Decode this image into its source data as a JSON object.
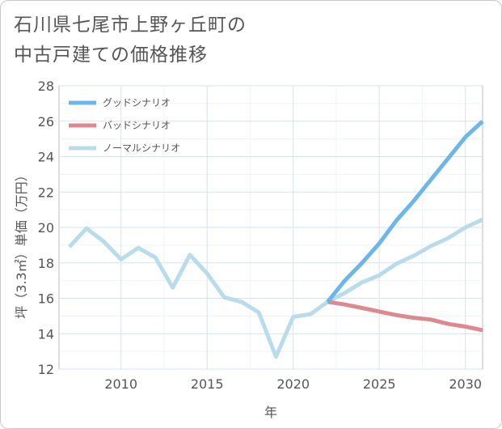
{
  "title_lines": [
    "石川県七尾市上野ヶ丘町の",
    "中古戸建ての価格推移"
  ],
  "chart_data": {
    "type": "line",
    "title": "石川県七尾市上野ヶ丘町の中古戸建ての価格推移",
    "xlabel": "年",
    "ylabel": "坪（3.3㎡）単価（万円）",
    "xlim": [
      2006.4,
      2031
    ],
    "ylim": [
      12,
      28
    ],
    "xticks": [
      2010,
      2015,
      2020,
      2025,
      2030
    ],
    "yticks": [
      12,
      14,
      16,
      18,
      20,
      22,
      24,
      26,
      28
    ],
    "grid": true,
    "legend_position": "top-left",
    "series": [
      {
        "name": "グッドシナリオ",
        "color": "#6cb6e8",
        "x": [
          2022,
          2023,
          2024,
          2025,
          2026,
          2027,
          2028,
          2029,
          2030,
          2031
        ],
        "y": [
          15.8,
          17.0,
          18.0,
          19.1,
          20.4,
          21.5,
          22.7,
          23.9,
          25.1,
          26.0
        ]
      },
      {
        "name": "バッドシナリオ",
        "color": "#dc8a90",
        "x": [
          2022,
          2023,
          2024,
          2025,
          2026,
          2027,
          2028,
          2029,
          2030,
          2031
        ],
        "y": [
          15.8,
          15.65,
          15.45,
          15.25,
          15.05,
          14.9,
          14.8,
          14.55,
          14.4,
          14.2
        ]
      },
      {
        "name": "ノーマルシナリオ",
        "color": "#b8dcea",
        "x": [
          2007,
          2008,
          2009,
          2010,
          2011,
          2012,
          2013,
          2014,
          2015,
          2016,
          2017,
          2018,
          2019,
          2020,
          2021,
          2022,
          2023,
          2024,
          2025,
          2026,
          2027,
          2028,
          2029,
          2030,
          2031
        ],
        "y": [
          18.9,
          19.95,
          19.2,
          18.2,
          18.85,
          18.3,
          16.6,
          18.45,
          17.4,
          16.05,
          15.8,
          15.2,
          12.7,
          14.95,
          15.1,
          15.8,
          16.3,
          16.9,
          17.3,
          17.95,
          18.4,
          18.95,
          19.4,
          20.0,
          20.45
        ]
      }
    ]
  }
}
